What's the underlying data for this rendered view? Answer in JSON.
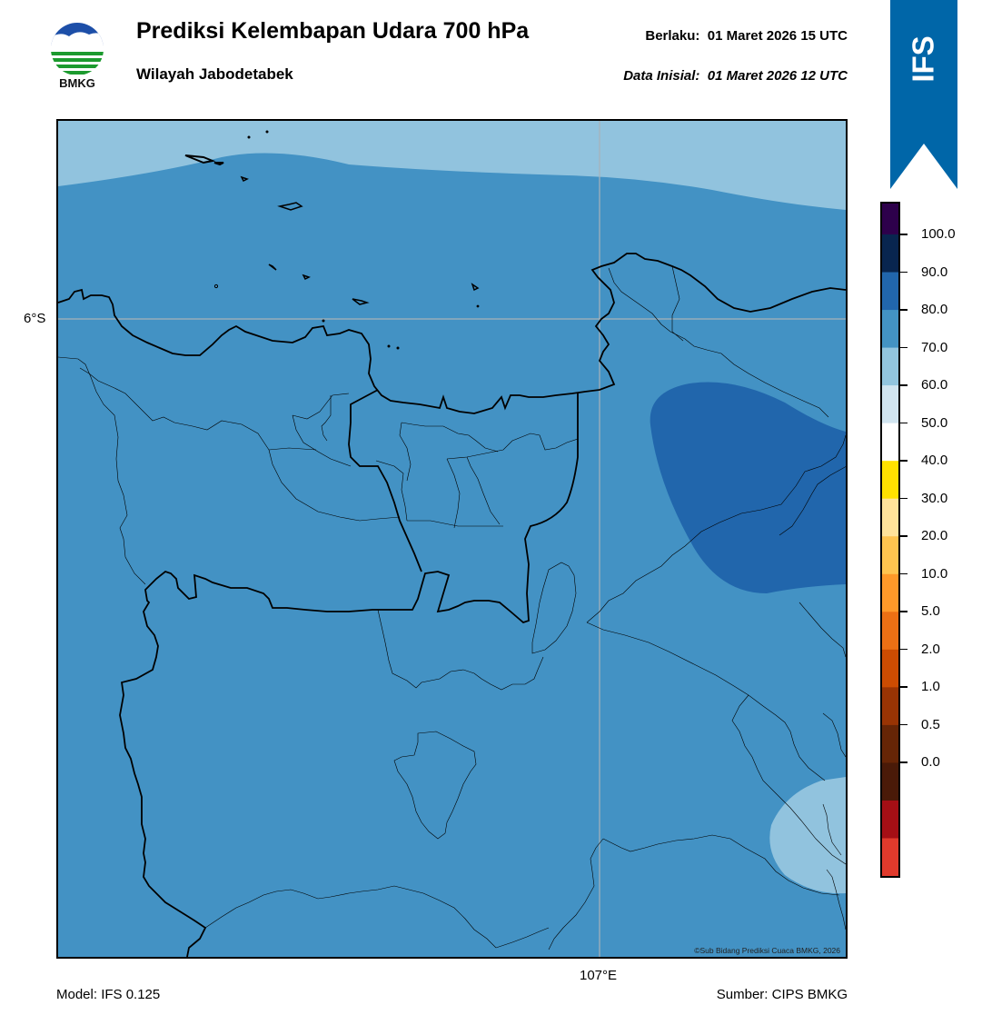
{
  "header": {
    "title": "Prediksi Kelembapan Udara 700 hPa",
    "subtitle": "Wilayah Jabodetabek",
    "valid_label": "Berlaku:",
    "valid_value": "01 Maret 2026 15 UTC",
    "init_label": "Data Inisial:",
    "init_value": "01 Maret 2026 12 UTC"
  },
  "logo": {
    "text": "BMKG",
    "icon": "bmkg-logo-icon"
  },
  "badge": {
    "text": "IFS",
    "color": "#0066a8"
  },
  "map": {
    "lat_label": "6°S",
    "lon_label": "107°E",
    "copyright": "©Sub Bidang Prediksi Cuaca BMKG, 2026",
    "colors": {
      "band_70_80": "#4392c4",
      "band_60_70": "#91c3de",
      "band_80_90": "#2166ac"
    }
  },
  "footer": {
    "model": "Model: IFS 0.125",
    "source": "Sumber: CIPS BMKG"
  },
  "colorbar": {
    "labels": [
      "100.0",
      "90.0",
      "80.0",
      "70.0",
      "60.0",
      "50.0",
      "40.0",
      "30.0",
      "20.0",
      "10.0",
      "5.0",
      "2.0",
      "1.0",
      "0.5",
      "0.0"
    ],
    "colors_top_to_bottom": [
      "#2d004b",
      "#08254f",
      "#2166ac",
      "#4393c3",
      "#92c5de",
      "#d1e5f0",
      "#ffffff",
      "#ffe100",
      "#ffe39a",
      "#fec44f",
      "#fe9929",
      "#ec7014",
      "#cc4c02",
      "#993404",
      "#662506",
      "#4a1a08",
      "#a50f15",
      "#e03a2c"
    ]
  }
}
